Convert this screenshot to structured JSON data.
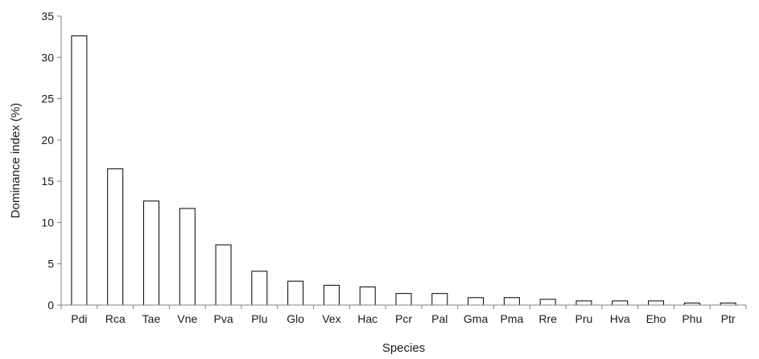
{
  "chart_data": {
    "type": "bar",
    "title": "",
    "xlabel": "Species",
    "ylabel": "Dominance index (%)",
    "ylim": [
      0,
      35
    ],
    "yticks": [
      0,
      5,
      10,
      15,
      20,
      25,
      30,
      35
    ],
    "grid": false,
    "legend": "none",
    "bar_fill": "#ffffff",
    "bar_stroke": "#000000",
    "categories": [
      "Pdi",
      "Rca",
      "Tae",
      "Vne",
      "Pva",
      "Plu",
      "Glo",
      "Vex",
      "Hac",
      "Pcr",
      "Pal",
      "Gma",
      "Pma",
      "Rre",
      "Pru",
      "Hva",
      "Eho",
      "Phu",
      "Ptr"
    ],
    "values": [
      32.6,
      16.5,
      12.6,
      11.7,
      7.3,
      4.1,
      2.9,
      2.4,
      2.2,
      1.4,
      1.4,
      0.9,
      0.9,
      0.7,
      0.5,
      0.5,
      0.5,
      0.25,
      0.25
    ]
  }
}
